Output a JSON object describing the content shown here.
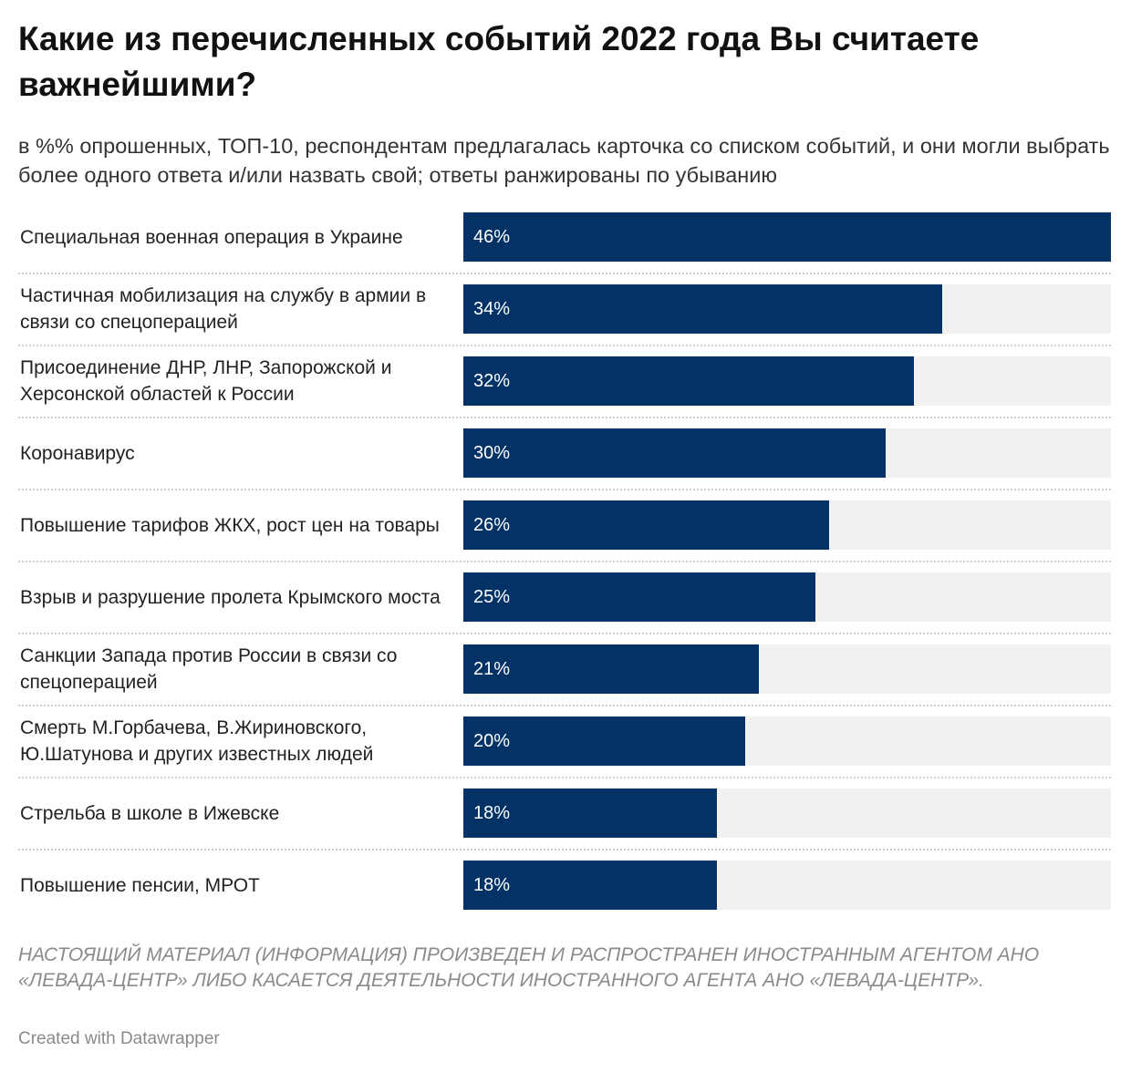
{
  "header": {
    "title": "Какие из перечисленных событий 2022 года Вы считаете важнейшими?",
    "subtitle": "в %% опрошенных, ТОП-10, респондентам предлагалась карточка со списком событий, и они могли выбрать более одного ответа и/или назвать свой; ответы ранжированы по убыванию"
  },
  "chart_data": {
    "type": "bar",
    "orientation": "horizontal",
    "categories": [
      "Специальная военная операция в Украине",
      "Частичная мобилизация на службу в армии в связи со спецоперацией",
      "Присоединение ДНР, ЛНР, Запорожской и Херсонской областей к России",
      "Коронавирус",
      "Повышение тарифов ЖКХ, рост цен на товары",
      "Взрыв и разрушение пролета Крымского моста",
      "Санкции Запада против России в связи со спецоперацией",
      "Смерть М.Горбачева, В.Жириновского, Ю.Шатунова и других известных людей",
      "Стрельба в школе в Ижевске",
      "Повышение пенсии, МРОТ"
    ],
    "values": [
      46,
      34,
      32,
      30,
      26,
      25,
      21,
      20,
      18,
      18
    ],
    "value_labels": [
      "46%",
      "34%",
      "32%",
      "30%",
      "26%",
      "25%",
      "21%",
      "20%",
      "18%",
      "18%"
    ],
    "xlim": [
      0,
      46
    ],
    "bar_color": "#033266",
    "track_color": "#f1f1f1",
    "grid": false
  },
  "footer": {
    "note": "НАСТОЯЩИЙ МАТЕРИАЛ (ИНФОРМАЦИЯ) ПРОИЗВЕДЕН И РАСПРОСТРАНЕН ИНОСТРАННЫМ АГЕНТОМ АНО «ЛЕВАДА-ЦЕНТР» ЛИБО КАСАЕТСЯ ДЕЯТЕЛЬНОСТИ ИНОСТРАННОГО АГЕНТА АНО «ЛЕВАДА-ЦЕНТР».",
    "credit": "Created with Datawrapper"
  }
}
